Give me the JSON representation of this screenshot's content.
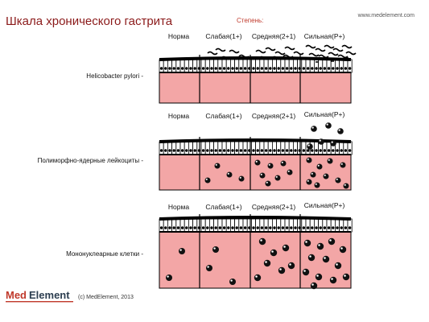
{
  "header": {
    "title": "Шкала хронического гастрита",
    "site": "www.medelement.com",
    "degree_label": "Степень:"
  },
  "columns": [
    "Норма",
    "Слабая(1+)",
    "Средняя(2+1)",
    "Сильная(Р+)"
  ],
  "panels": [
    {
      "label": "Helicobacter pylori -",
      "marker": "bacteria"
    },
    {
      "label": "Полиморфно-ядерные лейкоциты -",
      "marker": "neutrophils"
    },
    {
      "label": "Мононуклеарные клетки -",
      "marker": "mononuclear"
    }
  ],
  "footer": {
    "logo_text": "MedElement",
    "copyright": "(c) MedElement, 2013"
  },
  "colors": {
    "title": "#8b1a1a",
    "lamina": "#f3a6a6",
    "degree_label": "#c0392b",
    "logo_red": "#c0392b",
    "logo_dark": "#2c3e50"
  }
}
